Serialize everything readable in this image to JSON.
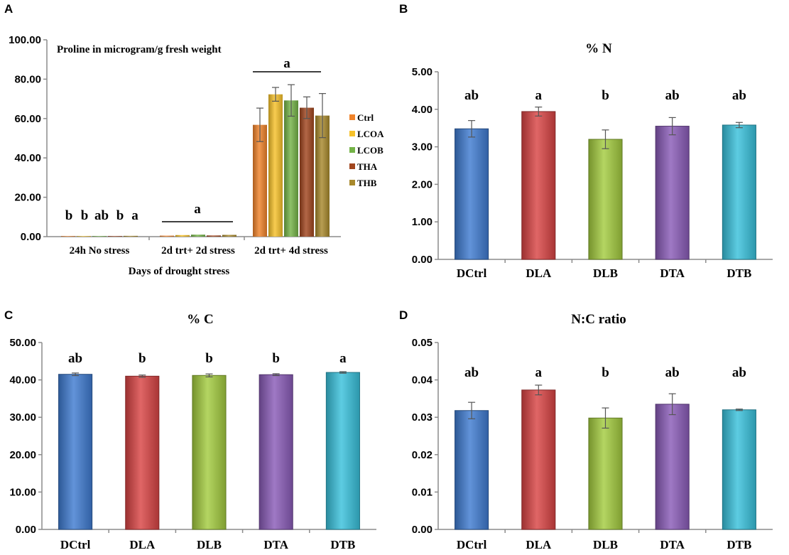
{
  "colors": {
    "blue": "#3f7bd1",
    "red": "#d94444",
    "green": "#a4cc3f",
    "purple": "#8a5cb8",
    "cyan": "#39c1dc",
    "ctrl": "#f0832a",
    "lcoa": "#f6c12a",
    "lcob": "#74b347",
    "tha": "#a1461e",
    "thb": "#a8892c",
    "axis": "#8c8c8c"
  },
  "chart_data": [
    {
      "panel": "A",
      "type": "bar",
      "title": "Proline in microgram/g fresh weight",
      "xlabel": "Days of drought stress",
      "ylabel": "",
      "ylim": [
        0,
        100
      ],
      "yticks": [
        "0.00",
        "20.00",
        "40.00",
        "60.00",
        "80.00",
        "100.00"
      ],
      "categories": [
        "24h No stress",
        "2d trt+ 2d stress",
        "2d trt+ 4d stress"
      ],
      "series": [
        {
          "name": "Ctrl",
          "color_key": "ctrl",
          "values": [
            0.3,
            0.5,
            56.8
          ],
          "errors": [
            0.1,
            0.2,
            8.5
          ]
        },
        {
          "name": "LCOA",
          "color_key": "lcoa",
          "values": [
            0.3,
            0.8,
            72.3
          ],
          "errors": [
            0.1,
            0.2,
            3.5
          ]
        },
        {
          "name": "LCOB",
          "color_key": "lcob",
          "values": [
            0.3,
            1.0,
            69.2
          ],
          "errors": [
            0.1,
            0.3,
            8.0
          ]
        },
        {
          "name": "THA",
          "color_key": "tha",
          "values": [
            0.3,
            0.6,
            65.5
          ],
          "errors": [
            0.1,
            0.2,
            5.5
          ]
        },
        {
          "name": "THB",
          "color_key": "thb",
          "values": [
            0.4,
            0.9,
            61.5
          ],
          "errors": [
            0.1,
            0.3,
            11.2
          ]
        }
      ],
      "legend": "right",
      "annotations": {
        "group1_letters": [
          "b",
          "b",
          "ab",
          "b",
          "a"
        ],
        "group2_letter": "a",
        "group3_letter": "a"
      }
    },
    {
      "panel": "B",
      "type": "bar",
      "title": "% N",
      "ylim": [
        0,
        5
      ],
      "yticks": [
        "0.00",
        "1.00",
        "2.00",
        "3.00",
        "4.00",
        "5.00"
      ],
      "categories": [
        "DCtrl",
        "DLA",
        "DLB",
        "DTA",
        "DTB"
      ],
      "values": [
        3.48,
        3.94,
        3.2,
        3.55,
        3.58
      ],
      "errors": [
        0.22,
        0.12,
        0.25,
        0.23,
        0.07
      ],
      "letters": [
        "ab",
        "a",
        "b",
        "ab",
        "ab"
      ]
    },
    {
      "panel": "C",
      "type": "bar",
      "title": "% C",
      "ylim": [
        0,
        50
      ],
      "yticks": [
        "0.00",
        "10.00",
        "20.00",
        "30.00",
        "40.00",
        "50.00"
      ],
      "categories": [
        "DCtrl",
        "DLA",
        "DLB",
        "DTA",
        "DTB"
      ],
      "values": [
        41.5,
        41.0,
        41.2,
        41.4,
        42.0
      ],
      "errors": [
        0.35,
        0.3,
        0.4,
        0.25,
        0.2
      ],
      "letters": [
        "ab",
        "b",
        "b",
        "b",
        "a"
      ]
    },
    {
      "panel": "D",
      "type": "bar",
      "title": "N:C ratio",
      "ylim": [
        0,
        0.05
      ],
      "yticks": [
        "0.00",
        "0.01",
        "0.02",
        "0.03",
        "0.04",
        "0.05"
      ],
      "categories": [
        "DCtrl",
        "DLA",
        "DLB",
        "DTA",
        "DTB"
      ],
      "values": [
        0.0318,
        0.0373,
        0.0298,
        0.0335,
        0.032
      ],
      "errors": [
        0.0022,
        0.0013,
        0.0027,
        0.0028,
        0.0002
      ],
      "letters": [
        "ab",
        "a",
        "b",
        "ab",
        "ab"
      ]
    }
  ]
}
